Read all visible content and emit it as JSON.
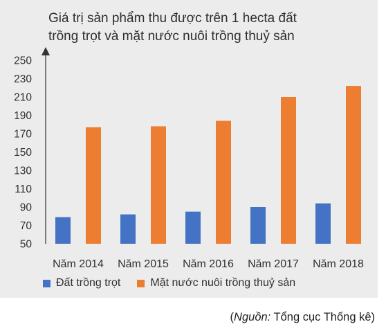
{
  "chart_data": {
    "type": "bar",
    "title_lines": [
      "Giá trị sản phẩm thu được trên 1 hecta đất",
      "trồng trọt và mặt nước nuôi trồng thuỷ sản"
    ],
    "categories": [
      "Năm 2014",
      "Năm 2015",
      "Năm 2016",
      "Năm 2017",
      "Năm 2018"
    ],
    "series": [
      {
        "name": "Đất trồng trọt",
        "color": "#4472c4",
        "values": [
          79,
          82,
          85,
          90,
          94
        ]
      },
      {
        "name": "Mặt nước nuôi trồng thuỷ sản",
        "color": "#ed7d31",
        "values": [
          177,
          178,
          184,
          210,
          222
        ]
      }
    ],
    "ylim": [
      50,
      250
    ],
    "yticks": [
      50,
      70,
      90,
      110,
      130,
      150,
      170,
      190,
      210,
      230,
      250
    ],
    "grid": false,
    "legend_position": "bottom",
    "xlabel": "",
    "ylabel": ""
  },
  "source": {
    "prefix": "(",
    "label": "Nguồn:",
    "text": " Tổng cục Thống kê)"
  }
}
